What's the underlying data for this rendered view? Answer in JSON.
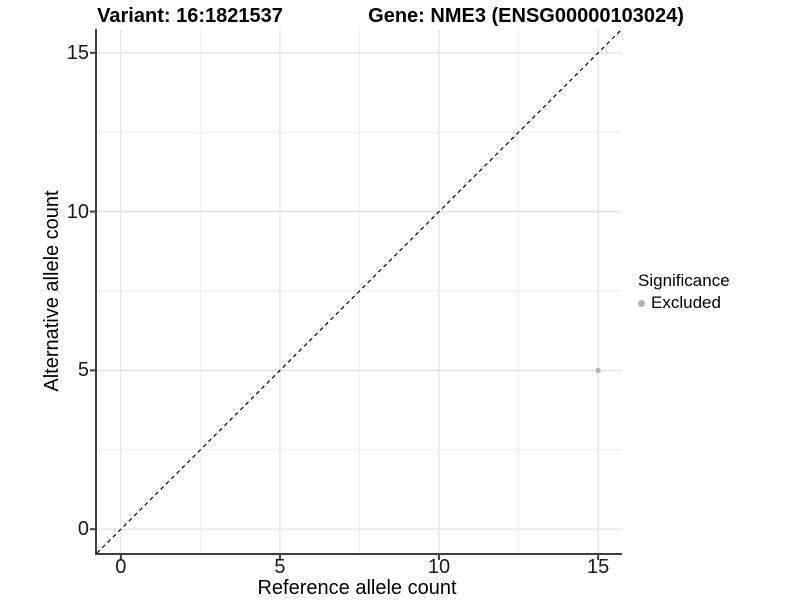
{
  "titles": {
    "variant": "Variant: 16:1821537",
    "gene": "Gene: NME3 (ENSG00000103024)"
  },
  "axes": {
    "x": {
      "label": "Reference allele count",
      "tick_labels": [
        "0",
        "5",
        "10",
        "15"
      ],
      "tick_values": [
        0,
        5,
        10,
        15
      ],
      "minor_values": [
        2.5,
        7.5,
        12.5
      ],
      "range": [
        -0.75,
        15.75
      ]
    },
    "y": {
      "label": "Alternative allele count",
      "tick_labels": [
        "0",
        "5",
        "10",
        "15"
      ],
      "tick_values": [
        0,
        5,
        10,
        15
      ],
      "minor_values": [
        2.5,
        7.5,
        12.5
      ],
      "range": [
        -0.75,
        15.75
      ]
    }
  },
  "legend": {
    "title": "Significance",
    "items": [
      {
        "label": "Excluded",
        "color": "#b3b3b3"
      }
    ]
  },
  "chart_data": {
    "type": "scatter",
    "title_left": "Variant: 16:1821537",
    "title_right": "Gene: NME3 (ENSG00000103024)",
    "xlabel": "Reference allele count",
    "ylabel": "Alternative allele count",
    "xlim": [
      -0.75,
      15.75
    ],
    "ylim": [
      -0.75,
      15.75
    ],
    "x_ticks": [
      0,
      5,
      10,
      15
    ],
    "y_ticks": [
      0,
      5,
      10,
      15
    ],
    "grid": true,
    "legend_title": "Significance",
    "legend_position": "right",
    "series": [
      {
        "name": "Excluded",
        "color": "#b3b3b3",
        "point_radius": 2.6,
        "points": [
          [
            15,
            5
          ]
        ]
      }
    ],
    "reference_line": {
      "type": "identity y=x",
      "style": "dashed",
      "color": "#000000"
    }
  },
  "colors": {
    "background": "#ffffff",
    "point": "#b3b3b3",
    "axis_line": "#3f3f3f",
    "grid_major": "#e2e2e2",
    "grid_minor": "#eeeeee",
    "dashed_line": "#000000",
    "tick_label": "#1a1a1a"
  }
}
